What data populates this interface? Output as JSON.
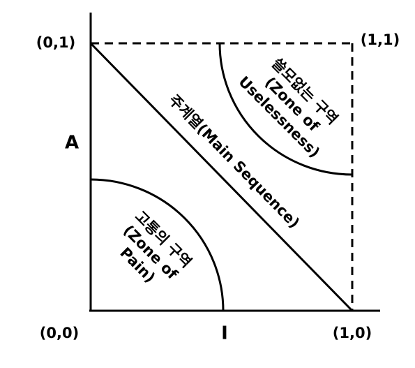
{
  "corners": {
    "top_left": "(0,1)",
    "top_right": "(1,1)",
    "bottom_left": "(0,0)",
    "bottom_right": "(1,0)"
  },
  "axes": {
    "y_label": "A",
    "x_label": "I"
  },
  "main_sequence": "주계열(Main Sequence)",
  "zone_of_pain": {
    "lines": [
      "고통의 구역",
      "(Zone of",
      "Pain)"
    ]
  },
  "zone_of_uselessness": {
    "lines": [
      "쓸모없는 구역",
      "(Zone of",
      "Uselessness)"
    ]
  }
}
